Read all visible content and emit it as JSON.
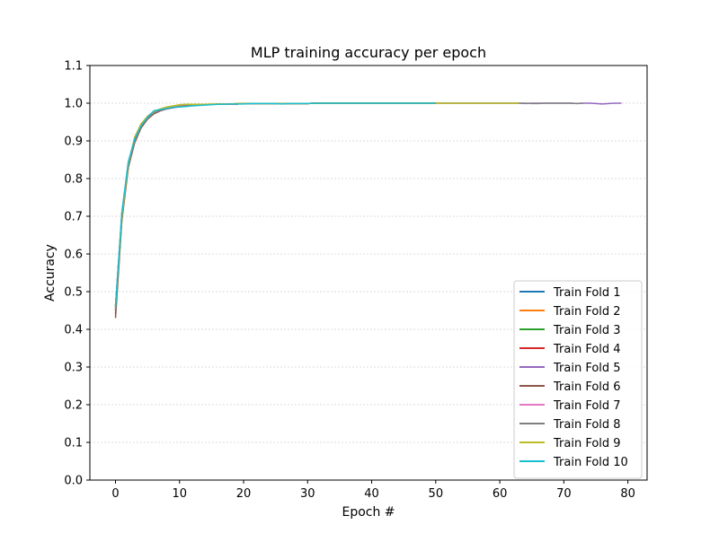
{
  "chart_data": {
    "type": "line",
    "title": "MLP training accuracy per epoch",
    "xlabel": "Epoch #",
    "ylabel": "Accuracy",
    "xlim": [
      -4,
      83
    ],
    "ylim": [
      0,
      1.1
    ],
    "x_ticks": [
      0,
      10,
      20,
      30,
      40,
      50,
      60,
      70,
      80
    ],
    "y_ticks": [
      0.0,
      0.1,
      0.2,
      0.3,
      0.4,
      0.5,
      0.6,
      0.7,
      0.8,
      0.9,
      1.0,
      1.1
    ],
    "y_tick_labels": [
      "0.0",
      "0.1",
      "0.2",
      "0.3",
      "0.4",
      "0.5",
      "0.6",
      "0.7",
      "0.8",
      "0.9",
      "1.0",
      "1.1"
    ],
    "grid": "horizontal dashed",
    "legend_position": "lower-right",
    "series": [
      {
        "name": "Train Fold 1",
        "color": "#1f77b4",
        "epochs": 51,
        "values": [
          0.46,
          0.71,
          0.84,
          0.9,
          0.94,
          0.96,
          0.975,
          0.98,
          0.985,
          0.988,
          0.991,
          0.993,
          0.994,
          0.995,
          0.996,
          0.997,
          0.997,
          0.998,
          0.998,
          0.998,
          0.999,
          0.999,
          0.999,
          0.999,
          0.999,
          0.999,
          0.999,
          0.999,
          0.999,
          0.999,
          0.999,
          1.0,
          1.0,
          1.0,
          1.0,
          1.0,
          1.0,
          1.0,
          1.0,
          1.0,
          1.0,
          1.0,
          1.0,
          1.0,
          1.0,
          1.0,
          1.0,
          1.0,
          1.0,
          1.0,
          1.0
        ]
      },
      {
        "name": "Train Fold 2",
        "color": "#ff7f0e",
        "epochs": 51,
        "values": [
          0.45,
          0.69,
          0.83,
          0.91,
          0.945,
          0.965,
          0.978,
          0.984,
          0.988,
          0.99,
          0.993,
          0.995,
          0.995,
          0.996,
          0.997,
          0.997,
          0.998,
          0.998,
          0.998,
          0.999,
          0.999,
          0.999,
          0.999,
          0.999,
          0.999,
          0.999,
          0.999,
          0.999,
          0.999,
          0.999,
          0.999,
          1.0,
          1.0,
          1.0,
          1.0,
          1.0,
          1.0,
          1.0,
          1.0,
          1.0,
          1.0,
          1.0,
          1.0,
          1.0,
          1.0,
          1.0,
          1.0,
          1.0,
          1.0,
          1.0,
          1.0
        ]
      },
      {
        "name": "Train Fold 3",
        "color": "#2ca02c",
        "epochs": 51,
        "values": [
          0.46,
          0.7,
          0.84,
          0.905,
          0.94,
          0.962,
          0.976,
          0.982,
          0.986,
          0.989,
          0.992,
          0.993,
          0.994,
          0.995,
          0.996,
          0.997,
          0.997,
          0.998,
          0.998,
          0.998,
          0.999,
          0.999,
          0.999,
          0.999,
          0.999,
          0.999,
          0.999,
          0.999,
          0.999,
          0.999,
          0.999,
          1.0,
          1.0,
          1.0,
          1.0,
          1.0,
          1.0,
          1.0,
          1.0,
          1.0,
          1.0,
          1.0,
          1.0,
          1.0,
          1.0,
          1.0,
          1.0,
          1.0,
          1.0,
          1.0,
          1.0
        ]
      },
      {
        "name": "Train Fold 4",
        "color": "#d62728",
        "epochs": 51,
        "values": [
          0.44,
          0.7,
          0.83,
          0.9,
          0.935,
          0.958,
          0.972,
          0.98,
          0.985,
          0.988,
          0.991,
          0.993,
          0.994,
          0.995,
          0.996,
          0.997,
          0.997,
          0.998,
          0.998,
          0.998,
          0.999,
          0.999,
          0.999,
          0.999,
          0.999,
          0.999,
          0.999,
          0.999,
          0.999,
          0.999,
          0.999,
          1.0,
          1.0,
          1.0,
          1.0,
          1.0,
          1.0,
          1.0,
          1.0,
          1.0,
          1.0,
          1.0,
          1.0,
          1.0,
          1.0,
          1.0,
          1.0,
          1.0,
          1.0,
          1.0,
          1.0
        ]
      },
      {
        "name": "Train Fold 5",
        "color": "#9467bd",
        "epochs": 80,
        "values": [
          0.45,
          0.7,
          0.83,
          0.9,
          0.935,
          0.96,
          0.973,
          0.981,
          0.985,
          0.988,
          0.991,
          0.993,
          0.994,
          0.995,
          0.996,
          0.997,
          0.997,
          0.998,
          0.998,
          0.998,
          0.999,
          0.999,
          0.999,
          0.999,
          0.999,
          0.999,
          0.999,
          0.999,
          0.999,
          0.999,
          0.999,
          1.0,
          1.0,
          1.0,
          1.0,
          1.0,
          1.0,
          1.0,
          1.0,
          1.0,
          1.0,
          1.0,
          1.0,
          1.0,
          1.0,
          1.0,
          1.0,
          1.0,
          1.0,
          1.0,
          1.0,
          1.0,
          1.0,
          1.0,
          1.0,
          1.0,
          1.0,
          1.0,
          1.0,
          1.0,
          1.0,
          1.0,
          1.0,
          1.0,
          0.999,
          1.0,
          1.0,
          1.0,
          1.0,
          1.0,
          1.0,
          1.0,
          0.999,
          1.0,
          1.0,
          0.999,
          0.998,
          0.999,
          1.0,
          1.0
        ]
      },
      {
        "name": "Train Fold 6",
        "color": "#8c564b",
        "epochs": 51,
        "values": [
          0.43,
          0.69,
          0.83,
          0.895,
          0.935,
          0.958,
          0.972,
          0.98,
          0.985,
          0.988,
          0.991,
          0.993,
          0.994,
          0.995,
          0.996,
          0.997,
          0.997,
          0.998,
          0.998,
          0.998,
          0.999,
          0.999,
          0.999,
          0.999,
          0.999,
          0.999,
          0.999,
          0.999,
          0.999,
          0.999,
          0.999,
          1.0,
          1.0,
          1.0,
          1.0,
          1.0,
          1.0,
          1.0,
          1.0,
          1.0,
          1.0,
          1.0,
          1.0,
          1.0,
          1.0,
          1.0,
          1.0,
          1.0,
          1.0,
          1.0,
          1.0
        ]
      },
      {
        "name": "Train Fold 7",
        "color": "#e377c2",
        "epochs": 51,
        "values": [
          0.46,
          0.71,
          0.84,
          0.905,
          0.94,
          0.962,
          0.975,
          0.982,
          0.986,
          0.989,
          0.992,
          0.993,
          0.994,
          0.995,
          0.996,
          0.997,
          0.997,
          0.998,
          0.998,
          0.998,
          0.999,
          0.999,
          0.999,
          0.999,
          0.999,
          0.999,
          0.999,
          0.999,
          0.999,
          0.999,
          0.999,
          1.0,
          1.0,
          1.0,
          1.0,
          1.0,
          1.0,
          1.0,
          1.0,
          1.0,
          1.0,
          1.0,
          1.0,
          1.0,
          1.0,
          1.0,
          1.0,
          1.0,
          1.0,
          1.0,
          1.0
        ]
      },
      {
        "name": "Train Fold 8",
        "color": "#7f7f7f",
        "epochs": 74,
        "values": [
          0.45,
          0.7,
          0.835,
          0.9,
          0.94,
          0.96,
          0.974,
          0.981,
          0.985,
          0.988,
          0.991,
          0.993,
          0.994,
          0.995,
          0.996,
          0.997,
          0.997,
          0.998,
          0.998,
          0.998,
          0.999,
          0.999,
          0.999,
          0.999,
          0.999,
          0.999,
          0.999,
          0.999,
          0.999,
          0.999,
          0.999,
          1.0,
          1.0,
          1.0,
          1.0,
          1.0,
          1.0,
          1.0,
          1.0,
          1.0,
          1.0,
          1.0,
          1.0,
          1.0,
          1.0,
          1.0,
          1.0,
          1.0,
          1.0,
          1.0,
          1.0,
          1.0,
          1.0,
          1.0,
          1.0,
          1.0,
          1.0,
          1.0,
          1.0,
          1.0,
          1.0,
          1.0,
          1.0,
          1.0,
          1.0,
          0.999,
          0.999,
          1.0,
          1.0,
          1.0,
          1.0,
          1.0,
          0.999,
          1.0
        ]
      },
      {
        "name": "Train Fold 9",
        "color": "#bcbd22",
        "epochs": 64,
        "values": [
          0.46,
          0.7,
          0.84,
          0.91,
          0.945,
          0.965,
          0.978,
          0.985,
          0.99,
          0.993,
          0.996,
          0.997,
          0.997,
          0.997,
          0.997,
          0.998,
          0.998,
          0.998,
          0.998,
          0.999,
          0.999,
          0.999,
          0.999,
          0.999,
          0.999,
          0.999,
          0.999,
          0.999,
          0.999,
          0.999,
          0.999,
          1.0,
          1.0,
          1.0,
          1.0,
          1.0,
          1.0,
          1.0,
          1.0,
          1.0,
          1.0,
          1.0,
          1.0,
          1.0,
          1.0,
          1.0,
          1.0,
          1.0,
          1.0,
          1.0,
          1.0,
          1.0,
          1.0,
          1.0,
          1.0,
          1.0,
          1.0,
          1.0,
          1.0,
          1.0,
          1.0,
          1.0,
          1.0,
          1.0
        ]
      },
      {
        "name": "Train Fold 10",
        "color": "#17becf",
        "epochs": 51,
        "values": [
          0.46,
          0.71,
          0.845,
          0.905,
          0.94,
          0.963,
          0.98,
          0.983,
          0.986,
          0.989,
          0.99,
          0.991,
          0.993,
          0.994,
          0.995,
          0.996,
          0.997,
          0.997,
          0.998,
          0.998,
          0.998,
          0.999,
          0.999,
          0.999,
          0.999,
          0.999,
          0.998,
          0.999,
          0.999,
          0.999,
          0.999,
          1.0,
          1.0,
          1.0,
          1.0,
          1.0,
          1.0,
          1.0,
          1.0,
          1.0,
          1.0,
          1.0,
          1.0,
          1.0,
          1.0,
          1.0,
          1.0,
          1.0,
          1.0,
          1.0,
          1.0
        ]
      }
    ]
  }
}
